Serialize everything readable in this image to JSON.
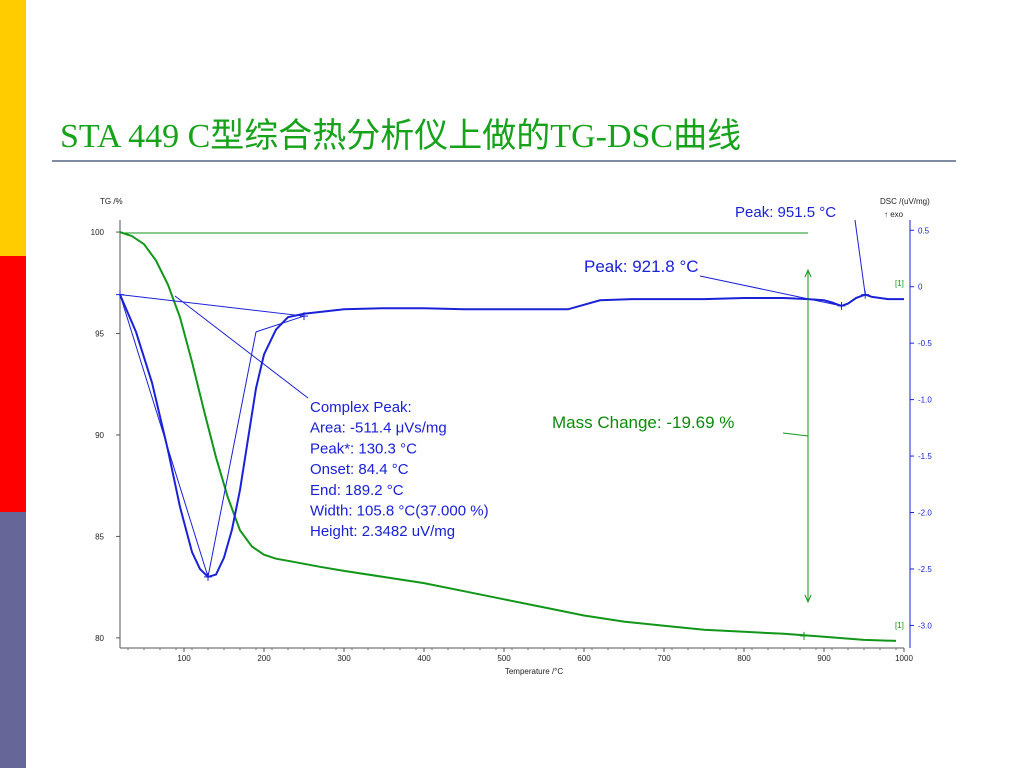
{
  "slide": {
    "title": "STA 449 C型综合热分析仪上做的TG-DSC曲线",
    "accent_colors": [
      "#ffcc00",
      "#ff0000",
      "#666699"
    ]
  },
  "chart_data": {
    "type": "line",
    "xlabel": "Temperature /°C",
    "xlim": [
      20,
      1000
    ],
    "xticks": [
      100,
      200,
      300,
      400,
      500,
      600,
      700,
      800,
      900,
      1000
    ],
    "y_left": {
      "label": "TG /%",
      "lim": [
        79.5,
        100.2
      ],
      "ticks": [
        80,
        85,
        90,
        95,
        100
      ]
    },
    "y_right": {
      "label": "DSC /(uV/mg)",
      "exo_label": "↑ exo",
      "lim": [
        -3.2,
        0.52
      ],
      "ticks": [
        0.5,
        0,
        -0.5,
        -1.0,
        -1.5,
        -2.0,
        -2.5,
        -3.0
      ]
    },
    "series": [
      {
        "axis": "left",
        "color": "#11961a",
        "x": [
          20,
          35,
          50,
          65,
          80,
          95,
          110,
          125,
          140,
          155,
          170,
          185,
          200,
          215,
          230,
          250,
          270,
          300,
          350,
          400,
          450,
          500,
          550,
          600,
          650,
          700,
          750,
          800,
          850,
          900,
          950,
          990
        ],
        "y": [
          100,
          99.8,
          99.4,
          98.6,
          97.4,
          95.8,
          93.6,
          91.2,
          88.9,
          86.9,
          85.3,
          84.5,
          84.1,
          83.9,
          83.8,
          83.65,
          83.5,
          83.3,
          83.0,
          82.7,
          82.3,
          81.9,
          81.5,
          81.1,
          80.8,
          80.6,
          80.4,
          80.3,
          80.2,
          80.05,
          79.9,
          79.85
        ]
      },
      {
        "axis": "right",
        "color": "#1a21d6",
        "x": [
          20,
          40,
          60,
          80,
          95,
          110,
          120,
          130,
          140,
          150,
          160,
          170,
          180,
          190,
          200,
          215,
          230,
          250,
          300,
          350,
          400,
          450,
          500,
          540,
          580,
          620,
          660,
          700,
          750,
          800,
          850,
          880,
          900,
          910,
          921.8,
          930,
          940,
          951.5,
          960,
          980,
          1000
        ],
        "y": [
          -0.07,
          -0.4,
          -0.85,
          -1.45,
          -1.95,
          -2.35,
          -2.5,
          -2.57,
          -2.55,
          -2.4,
          -2.15,
          -1.8,
          -1.35,
          -0.9,
          -0.6,
          -0.38,
          -0.27,
          -0.24,
          -0.2,
          -0.19,
          -0.19,
          -0.2,
          -0.2,
          -0.2,
          -0.2,
          -0.12,
          -0.11,
          -0.11,
          -0.11,
          -0.1,
          -0.1,
          -0.11,
          -0.12,
          -0.14,
          -0.17,
          -0.15,
          -0.1,
          -0.07,
          -0.09,
          -0.11,
          -0.11
        ]
      }
    ],
    "annotations": {
      "complex_peak": [
        "Complex Peak:",
        "Area:    -511.4 μVs/mg",
        "Peak*:   130.3 °C",
        "Onset:      84.4 °C",
        "End:       189.2 °C",
        "Width:    105.8 °C(37.000 %)",
        "Height:       2.3482 uV/mg"
      ],
      "peak1": "Peak: 921.8 °C",
      "peak2": "Peak: 951.5 °C",
      "mass_change": "Mass Change: -19.69 %",
      "markers": [
        "[1]",
        "[1]"
      ]
    }
  }
}
